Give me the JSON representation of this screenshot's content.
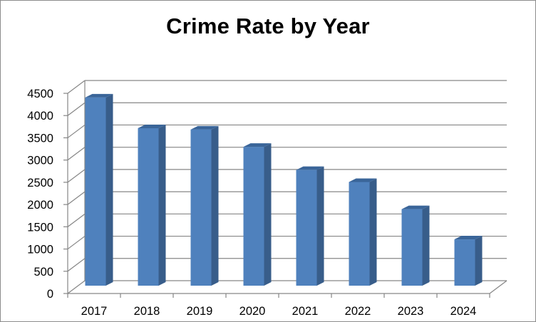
{
  "chart_data": {
    "type": "bar",
    "title": "Crime Rate by Year",
    "xlabel": "",
    "ylabel": "",
    "categories": [
      "2017",
      "2018",
      "2019",
      "2020",
      "2021",
      "2022",
      "2023",
      "2024"
    ],
    "values": [
      4230,
      3540,
      3510,
      3120,
      2600,
      2330,
      1720,
      1040
    ],
    "ylim": [
      0,
      4500
    ],
    "yticks": [
      0,
      500,
      1000,
      1500,
      2000,
      2500,
      3000,
      3500,
      4000,
      4500
    ],
    "ytick_labels": [
      "0",
      "500",
      "1000",
      "1500",
      "2000",
      "2500",
      "3000",
      "3500",
      "4000",
      "4500"
    ],
    "grid": true,
    "legend": "none",
    "style": "3d-column",
    "colors": {
      "bar_front": "#4f81bd",
      "bar_side": "#385d8a",
      "bar_top": "#3a6599",
      "grid": "#868686",
      "axis": "#868686",
      "wall": "#ffffff",
      "frame": "#8c8c8c"
    }
  }
}
